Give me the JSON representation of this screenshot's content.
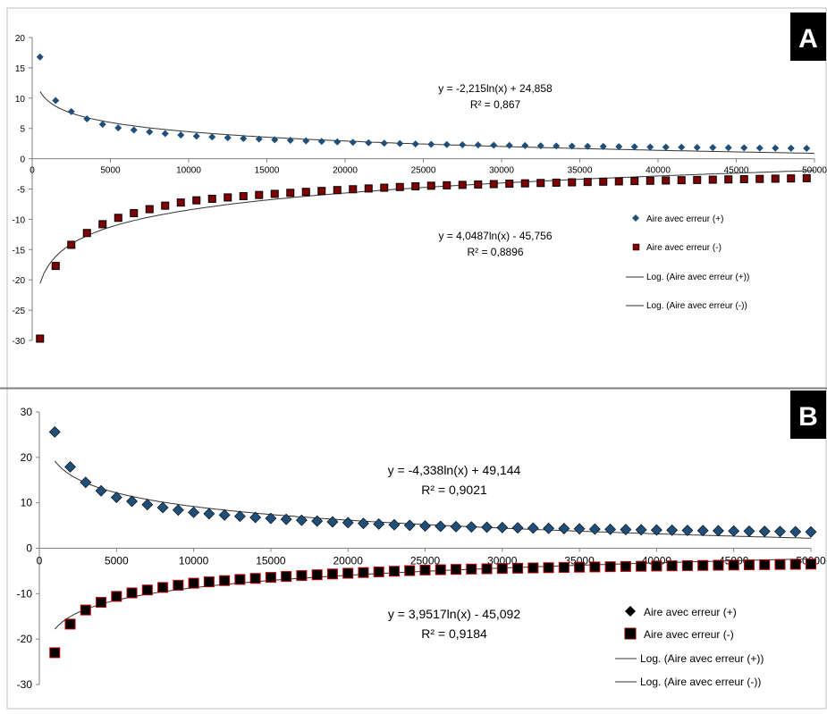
{
  "panels": [
    {
      "badge": "A",
      "equation_plus": "y = -2,215ln(x) + 24,858",
      "r2_plus": "R² = 0,867",
      "equation_minus": "y = 4,0487ln(x) - 45,756",
      "r2_minus": "R² = 0,8896",
      "legend": [
        "Aire avec erreur (+)",
        "Aire avec erreur (-)",
        "Log. (Aire avec erreur (+))",
        "Log. (Aire avec erreur (-))"
      ],
      "x_ticks": [
        "0",
        "5000",
        "10000",
        "15000",
        "20000",
        "25000",
        "30000",
        "35000",
        "40000",
        "45000",
        "50000"
      ],
      "y_ticks": [
        "20",
        "15",
        "10",
        "5",
        "0",
        "-5",
        "-10",
        "-15",
        "-20",
        "-25",
        "-30"
      ]
    },
    {
      "badge": "B",
      "equation_plus": "y = -4,338ln(x) + 49,144",
      "r2_plus": "R² = 0,9021",
      "equation_minus": "y = 3,9517ln(x) - 45,092",
      "r2_minus": "R² = 0,9184",
      "legend": [
        "Aire avec erreur (+)",
        "Aire avec erreur (-)",
        "Log. (Aire avec erreur (+))",
        "Log. (Aire avec erreur (-))"
      ],
      "x_ticks": [
        "0",
        "5000",
        "10000",
        "15000",
        "20000",
        "25000",
        "30000",
        "35000",
        "40000",
        "45000",
        "50000"
      ],
      "y_ticks": [
        "30",
        "20",
        "10",
        "0",
        "-10",
        "-20",
        "-30"
      ]
    }
  ],
  "chart_data": [
    {
      "type": "scatter",
      "xlim": [
        0,
        50000
      ],
      "ylim": [
        -30,
        20
      ],
      "x_step": 1000,
      "x_start": 500,
      "x_end": 50000,
      "series": [
        {
          "name": "Aire avec erreur (+)",
          "marker": "diamond",
          "color": "#1f4e79",
          "sample_points": [
            [
              500,
              16.8
            ],
            [
              1000,
              11.8
            ],
            [
              1500,
              9.6
            ],
            [
              5000,
              5.3
            ],
            [
              10000,
              3.8
            ],
            [
              25000,
              2.4
            ],
            [
              50000,
              1.7
            ]
          ]
        },
        {
          "name": "Aire avec erreur (-)",
          "marker": "square",
          "color": "#7f0000",
          "sample_points": [
            [
              500,
              -29.7
            ],
            [
              1000,
              -21.5
            ],
            [
              1500,
              -17.7
            ],
            [
              2000,
              -15.5
            ],
            [
              5000,
              -10.2
            ],
            [
              10000,
              -7.0
            ],
            [
              25000,
              -4.5
            ],
            [
              50000,
              -3.2
            ]
          ]
        }
      ],
      "trendlines": [
        {
          "name": "Log. (Aire avec erreur (+))",
          "a": -2.215,
          "b": 24.858
        },
        {
          "name": "Log. (Aire avec erreur (-))",
          "a": 4.0487,
          "b": -45.756
        }
      ],
      "colors": {
        "plus": "#1f4e79",
        "minus": "#7f0000",
        "line": "#333333"
      }
    },
    {
      "type": "scatter",
      "xlim": [
        0,
        50000
      ],
      "ylim": [
        -30,
        30
      ],
      "x_step": 1000,
      "x_start": 1000,
      "x_end": 50000,
      "series": [
        {
          "name": "Aire avec erreur (+)",
          "marker": "diamond",
          "color": "#1f4e79",
          "sample_points": [
            [
              1000,
              25.6
            ],
            [
              2000,
              17.9
            ],
            [
              3000,
              14.5
            ],
            [
              5000,
              11.2
            ],
            [
              10000,
              7.9
            ],
            [
              25000,
              4.9
            ],
            [
              50000,
              3.6
            ]
          ]
        },
        {
          "name": "Aire avec erreur (-)",
          "marker": "square",
          "color": "#7f0000",
          "sample_points": [
            [
              1000,
              -23.0
            ],
            [
              2000,
              -16.7
            ],
            [
              3000,
              -13.6
            ],
            [
              5000,
              -10.6
            ],
            [
              10000,
              -7.7
            ],
            [
              25000,
              -4.8
            ],
            [
              50000,
              -3.5
            ]
          ]
        }
      ],
      "trendlines": [
        {
          "name": "Log. (Aire avec erreur (+))",
          "a": -4.338,
          "b": 49.144
        },
        {
          "name": "Log. (Aire avec erreur (-))",
          "a": 3.9517,
          "b": -45.092
        }
      ],
      "colors": {
        "plus": "#1f4e79",
        "minus": "#7f0000",
        "line": "#333333"
      }
    }
  ]
}
